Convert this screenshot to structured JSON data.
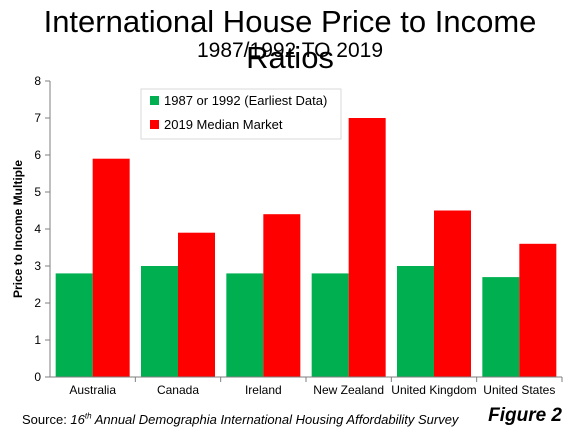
{
  "chart_data": {
    "type": "bar",
    "title": "International House Price to Income Ratios",
    "subtitle": "1987/1992 TO 2019",
    "ylabel": "Price to Income Multiple",
    "xlabel": "",
    "ylim": [
      0,
      8
    ],
    "yticks": [
      0,
      1,
      2,
      3,
      4,
      5,
      6,
      7,
      8
    ],
    "grid": false,
    "legend_placement": "top-left",
    "categories": [
      "Australia",
      "Canada",
      "Ireland",
      "New Zealand",
      "United Kingdom",
      "United States"
    ],
    "series": [
      {
        "name": "1987 or 1992 (Earliest Data)",
        "color": "#00b050",
        "values": [
          2.8,
          3.0,
          2.8,
          2.8,
          3.0,
          2.7
        ]
      },
      {
        "name": "2019 Median Market",
        "color": "#ff0000",
        "values": [
          5.9,
          3.9,
          4.4,
          7.0,
          4.5,
          3.6
        ]
      }
    ]
  },
  "footer": {
    "source_prefix": "Source: ",
    "source_ordinal": "16",
    "source_superscript": "th",
    "source_title": " Annual Demographia International Housing Affordability Survey",
    "figure_label": "Figure 2"
  }
}
